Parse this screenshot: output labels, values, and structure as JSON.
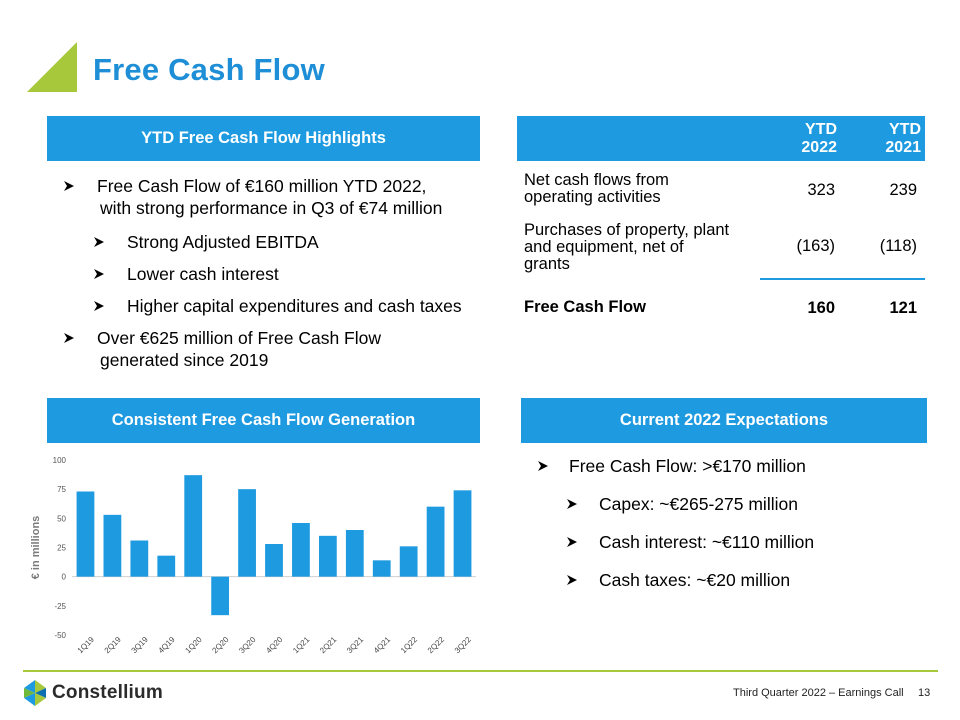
{
  "title": "Free Cash Flow",
  "colors": {
    "accent_blue": "#1e9ae0",
    "accent_green": "#a7c83a",
    "title_blue": "#1e8fd6"
  },
  "highlights": {
    "header": "YTD Free Cash Flow Highlights",
    "bullets": [
      {
        "level": 1,
        "text": "Free Cash Flow of €160 million YTD 2022,",
        "cont": "with strong performance in Q3 of €74 million"
      },
      {
        "level": 2,
        "text": "Strong Adjusted EBITDA"
      },
      {
        "level": 2,
        "text": "Lower cash interest"
      },
      {
        "level": 2,
        "text": "Higher capital expenditures and cash taxes"
      },
      {
        "level": 1,
        "text": "Over €625 million of Free Cash Flow",
        "cont": "generated since 2019"
      }
    ]
  },
  "table": {
    "col1_line1": "YTD",
    "col1_line2": "2022",
    "col2_line1": "YTD",
    "col2_line2": "2021",
    "rows": [
      {
        "label_line1": "Net cash flows from",
        "label_line2": "operating activities",
        "label_line3": "",
        "v2022": "323",
        "v2021": "239"
      },
      {
        "label_line1": "Purchases of property, plant",
        "label_line2": "and equipment, net of",
        "label_line3": "grants",
        "v2022": "(163)",
        "v2021": "(118)"
      },
      {
        "label_line1": "Free Cash Flow",
        "label_line2": "",
        "label_line3": "",
        "v2022": "160",
        "v2021": "121"
      }
    ]
  },
  "generation": {
    "header": "Consistent Free Cash Flow Generation"
  },
  "expectations": {
    "header": "Current 2022 Expectations",
    "bullets": [
      {
        "level": 1,
        "text": "Free Cash Flow: >€170 million"
      },
      {
        "level": 2,
        "text": "Capex: ~€265-275 million"
      },
      {
        "level": 2,
        "text": "Cash interest: ~€110 million"
      },
      {
        "level": 2,
        "text": "Cash taxes: ~€20 million"
      }
    ]
  },
  "chart_data": {
    "type": "bar",
    "title": "Consistent Free Cash Flow Generation",
    "xlabel": "",
    "ylabel": "€ in millions",
    "categories": [
      "1Q19",
      "2Q19",
      "3Q19",
      "4Q19",
      "1Q20",
      "2Q20",
      "3Q20",
      "4Q20",
      "1Q21",
      "2Q21",
      "3Q21",
      "4Q21",
      "1Q22",
      "2Q22",
      "3Q22"
    ],
    "values": [
      73,
      53,
      31,
      18,
      87,
      -33,
      75,
      28,
      46,
      35,
      40,
      14,
      26,
      60,
      74
    ],
    "ylim": [
      -50,
      100
    ],
    "yticks": [
      "100",
      "75",
      "50",
      "25",
      "0",
      "-25",
      "-50"
    ],
    "bar_color": "#1e9ae0",
    "grid": false
  },
  "footer": {
    "company": "Constellium",
    "event": "Third Quarter 2022 – Earnings Call",
    "page": "13"
  }
}
